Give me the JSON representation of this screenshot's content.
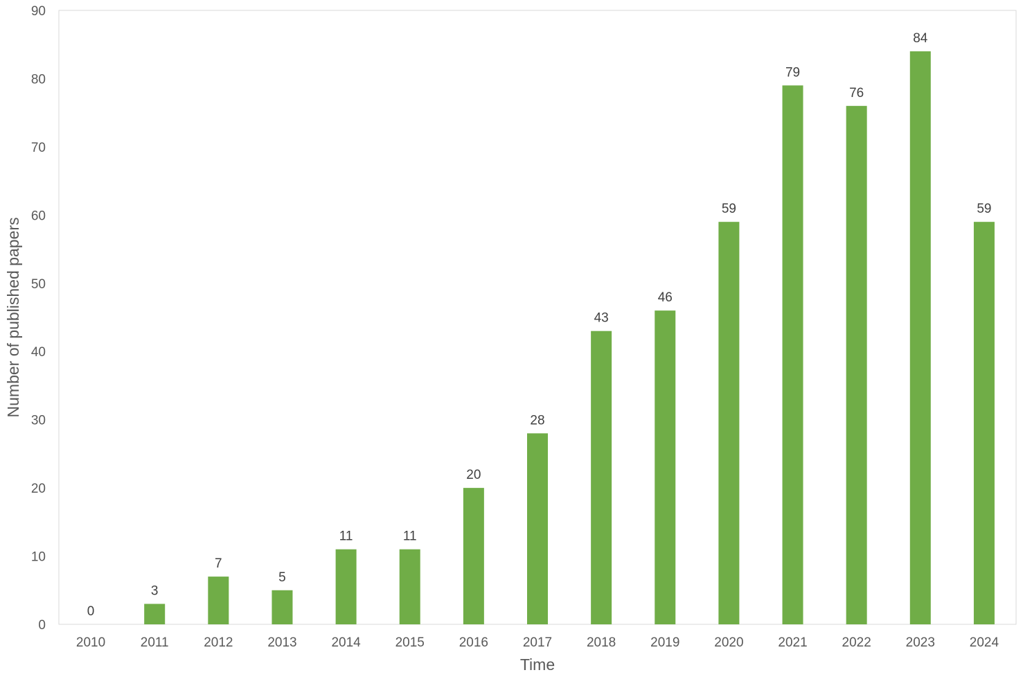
{
  "chart_data": {
    "type": "bar",
    "title": "",
    "xlabel": "Time",
    "ylabel": "Number of published papers",
    "categories": [
      "2010",
      "2011",
      "2012",
      "2013",
      "2014",
      "2015",
      "2016",
      "2017",
      "2018",
      "2019",
      "2020",
      "2021",
      "2022",
      "2023",
      "2024"
    ],
    "values": [
      0,
      3,
      7,
      5,
      11,
      11,
      20,
      28,
      43,
      46,
      59,
      79,
      76,
      84,
      59
    ],
    "ylim": [
      0,
      90
    ],
    "yticks": [
      0,
      10,
      20,
      30,
      40,
      50,
      60,
      70,
      80,
      90
    ],
    "data_labels": true,
    "grid": false,
    "legend": "none",
    "bar_color": "#70AD47",
    "axis_color": "#D9D9D9"
  }
}
